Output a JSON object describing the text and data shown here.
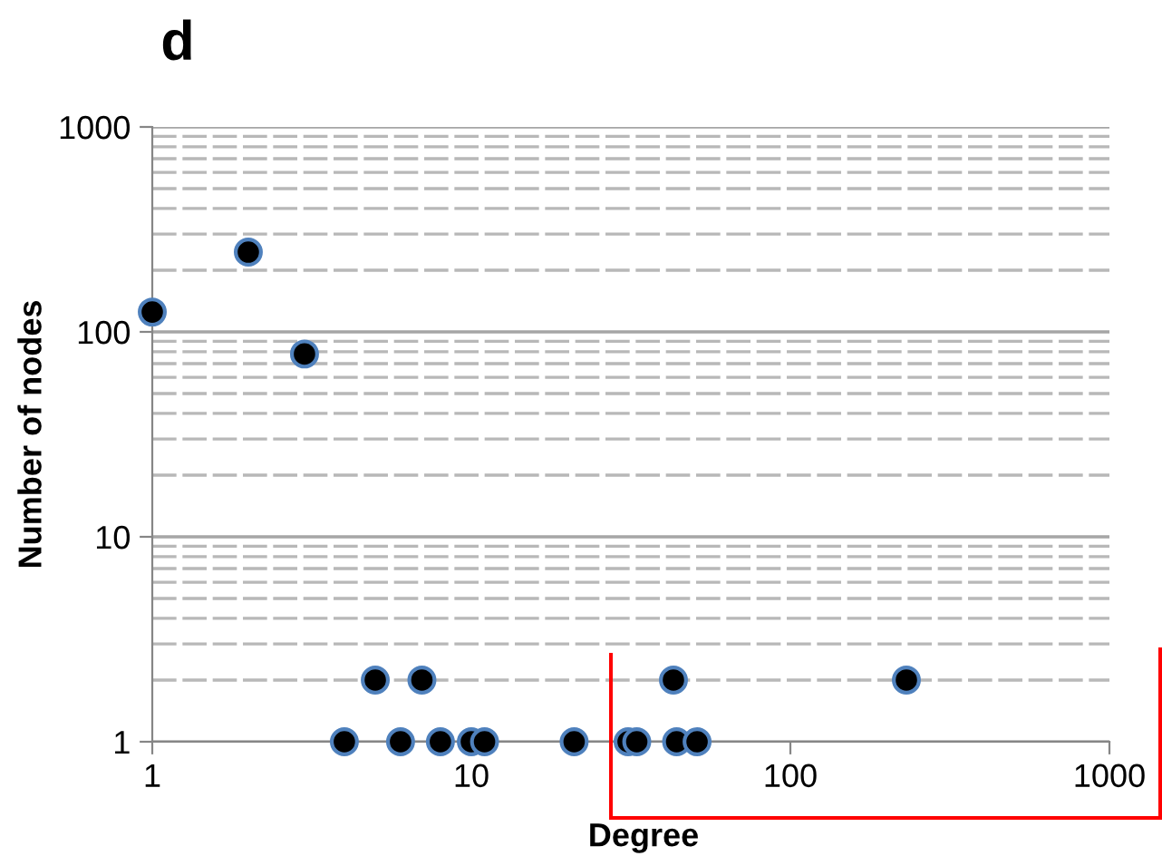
{
  "chart_data": {
    "type": "scatter",
    "title": "d",
    "xlabel": "Degree",
    "ylabel": "Number of nodes",
    "log": "xy",
    "x": [
      1,
      2,
      3,
      4,
      5,
      6,
      7,
      8,
      10,
      11,
      21,
      31,
      33,
      43,
      44,
      51,
      231
    ],
    "series": [
      {
        "color": "#000000",
        "values": [
          125,
          245,
          78,
          1,
          2,
          1,
          2,
          1,
          1,
          1,
          1,
          1,
          1,
          2,
          1,
          1,
          2
        ]
      }
    ],
    "xlim": [
      1,
      1000
    ],
    "xticks": [
      1,
      10,
      100,
      1000
    ],
    "ylim": [
      1,
      1000
    ],
    "yticks": [
      1,
      10,
      100,
      1000
    ],
    "grid": "y",
    "marker": "circle",
    "legend": false
  }
}
